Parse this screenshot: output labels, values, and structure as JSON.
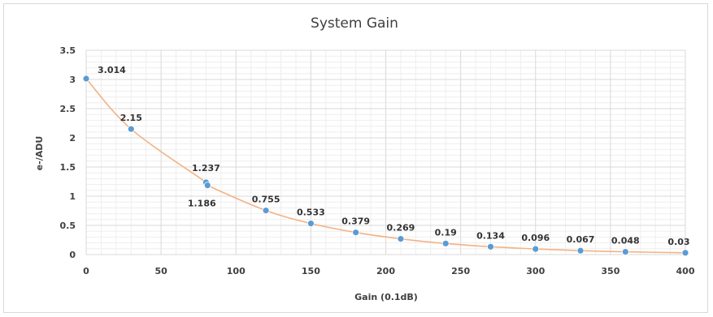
{
  "chart_data": {
    "type": "line",
    "title": "System Gain",
    "xlabel": "Gain (0.1dB)",
    "ylabel": "e-/ADU",
    "xlim": [
      0,
      400
    ],
    "ylim": [
      0,
      3.5
    ],
    "xticks": [
      0,
      50,
      100,
      150,
      200,
      250,
      300,
      350,
      400
    ],
    "yticks": [
      0,
      0.5,
      1,
      1.5,
      2,
      2.5,
      3,
      3.5
    ],
    "grid": true,
    "legend": "none",
    "series": [
      {
        "x": [
          0,
          30,
          80,
          81,
          120,
          150,
          180,
          210,
          240,
          270,
          300,
          330,
          360,
          400
        ],
        "y": [
          3.014,
          2.15,
          1.237,
          1.186,
          0.755,
          0.533,
          0.379,
          0.269,
          0.19,
          0.134,
          0.096,
          0.067,
          0.048,
          0.03
        ],
        "labels": [
          "3.014",
          "2.15",
          "1.237",
          "1.186",
          "0.755",
          "0.533",
          "0.379",
          "0.269",
          "0.19",
          "0.134",
          "0.096",
          "0.067",
          "0.048",
          "0.03"
        ],
        "color": "#5b9bd5",
        "line_color": "#f4b183"
      }
    ]
  }
}
